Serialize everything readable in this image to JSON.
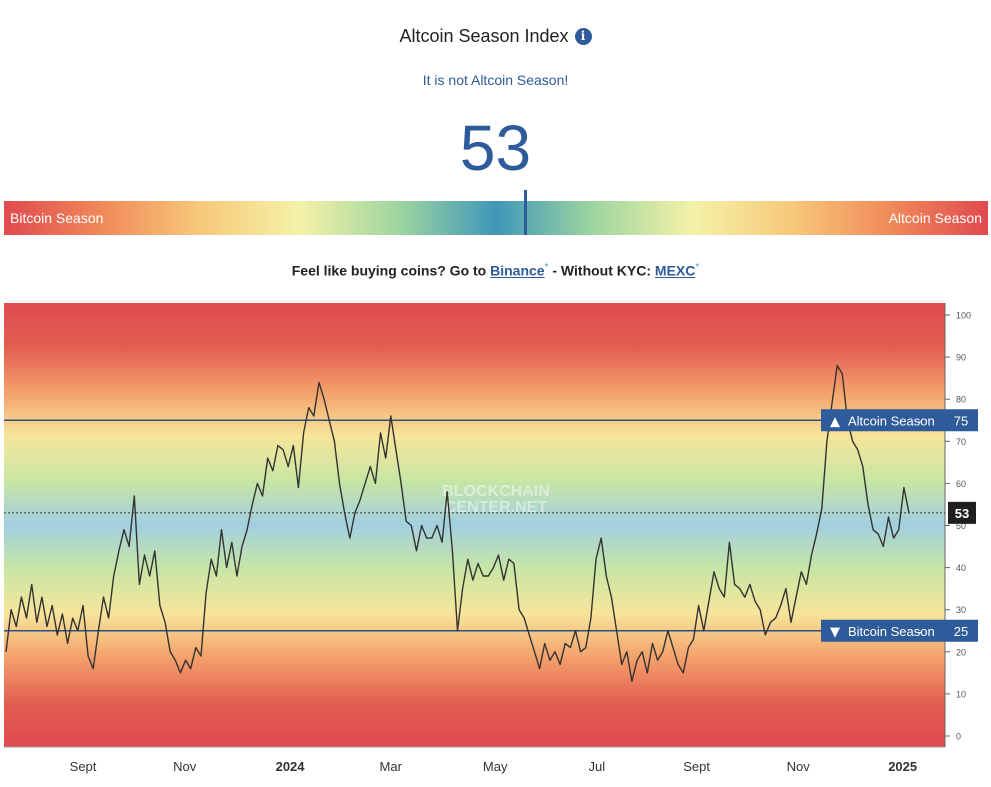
{
  "header": {
    "title": "Altcoin Season Index",
    "info_icon": "info-icon",
    "status": "It is not Altcoin Season!",
    "index_value": "53"
  },
  "gauge": {
    "left_label": "Bitcoin Season",
    "right_label": "Altcoin Season",
    "value": 53
  },
  "promo": {
    "prefix": "Feel like buying coins? Go to",
    "link1": "Binance",
    "mark1": "*",
    "middle": "- Without KYC:",
    "link2": "MEXC",
    "mark2": "*"
  },
  "colors": {
    "accent": "#2e5b9a",
    "bitcoin_red": "#e04a4f",
    "line": "#333333"
  },
  "chart_data": {
    "type": "line",
    "watermark": [
      "BLOCKCHAIN",
      "CENTER.NET"
    ],
    "ylim": [
      0,
      100
    ],
    "yticks": [
      "0",
      "10",
      "20",
      "30",
      "40",
      "50",
      "60",
      "70",
      "80",
      "90",
      "100"
    ],
    "x_tick_labels": [
      {
        "label": "Sept",
        "t": 0.084,
        "bold": false
      },
      {
        "label": "Nov",
        "t": 0.192,
        "bold": false
      },
      {
        "label": "2024",
        "t": 0.304,
        "bold": true
      },
      {
        "label": "Mar",
        "t": 0.411,
        "bold": false
      },
      {
        "label": "May",
        "t": 0.522,
        "bold": false
      },
      {
        "label": "Jul",
        "t": 0.63,
        "bold": false
      },
      {
        "label": "Sept",
        "t": 0.736,
        "bold": false
      },
      {
        "label": "Nov",
        "t": 0.844,
        "bold": false
      },
      {
        "label": "2025",
        "t": 0.955,
        "bold": true
      }
    ],
    "thresholds": [
      {
        "value": 75,
        "label": "Altcoin Season",
        "arrow": "▲",
        "value_label": "75"
      },
      {
        "value": 25,
        "label": "Bitcoin Season",
        "arrow": "▼",
        "value_label": "25"
      }
    ],
    "current": {
      "value": 53,
      "label": "53"
    },
    "series": [
      {
        "values": [
          20,
          30,
          26,
          33,
          28,
          36,
          27,
          33,
          26,
          31,
          24,
          29,
          22,
          28,
          25,
          31,
          19,
          16,
          25,
          33,
          28,
          38,
          44,
          49,
          45,
          57,
          36,
          43,
          38,
          44,
          31,
          27,
          20,
          18,
          15,
          18,
          16,
          21,
          19,
          34,
          42,
          38,
          49,
          40,
          46,
          38,
          45,
          49,
          55,
          60,
          57,
          66,
          63,
          69,
          68,
          64,
          69,
          59,
          72,
          78,
          76,
          84,
          80,
          75,
          70,
          60,
          53,
          47,
          53,
          56,
          60,
          64,
          60,
          72,
          66,
          76,
          68,
          60,
          51,
          50,
          44,
          50,
          47,
          47,
          50,
          46,
          58,
          44,
          25,
          35,
          42,
          37,
          41,
          38,
          38,
          40,
          43,
          37,
          42,
          41,
          30,
          28,
          24,
          20,
          16,
          22,
          18,
          20,
          17,
          22,
          21,
          25,
          20,
          21,
          28,
          42,
          47,
          38,
          33,
          25,
          17,
          20,
          13,
          18,
          20,
          15,
          22,
          18,
          20,
          25,
          21,
          17,
          15,
          21,
          23,
          31,
          25,
          32,
          39,
          35,
          33,
          46,
          36,
          35,
          33,
          36,
          32,
          30,
          24,
          27,
          28,
          31,
          35,
          27,
          33,
          39,
          36,
          43,
          48,
          54,
          70,
          79,
          88,
          86,
          75,
          70,
          68,
          64,
          55,
          49,
          48,
          45,
          52,
          47,
          49,
          59,
          53
        ]
      }
    ]
  }
}
